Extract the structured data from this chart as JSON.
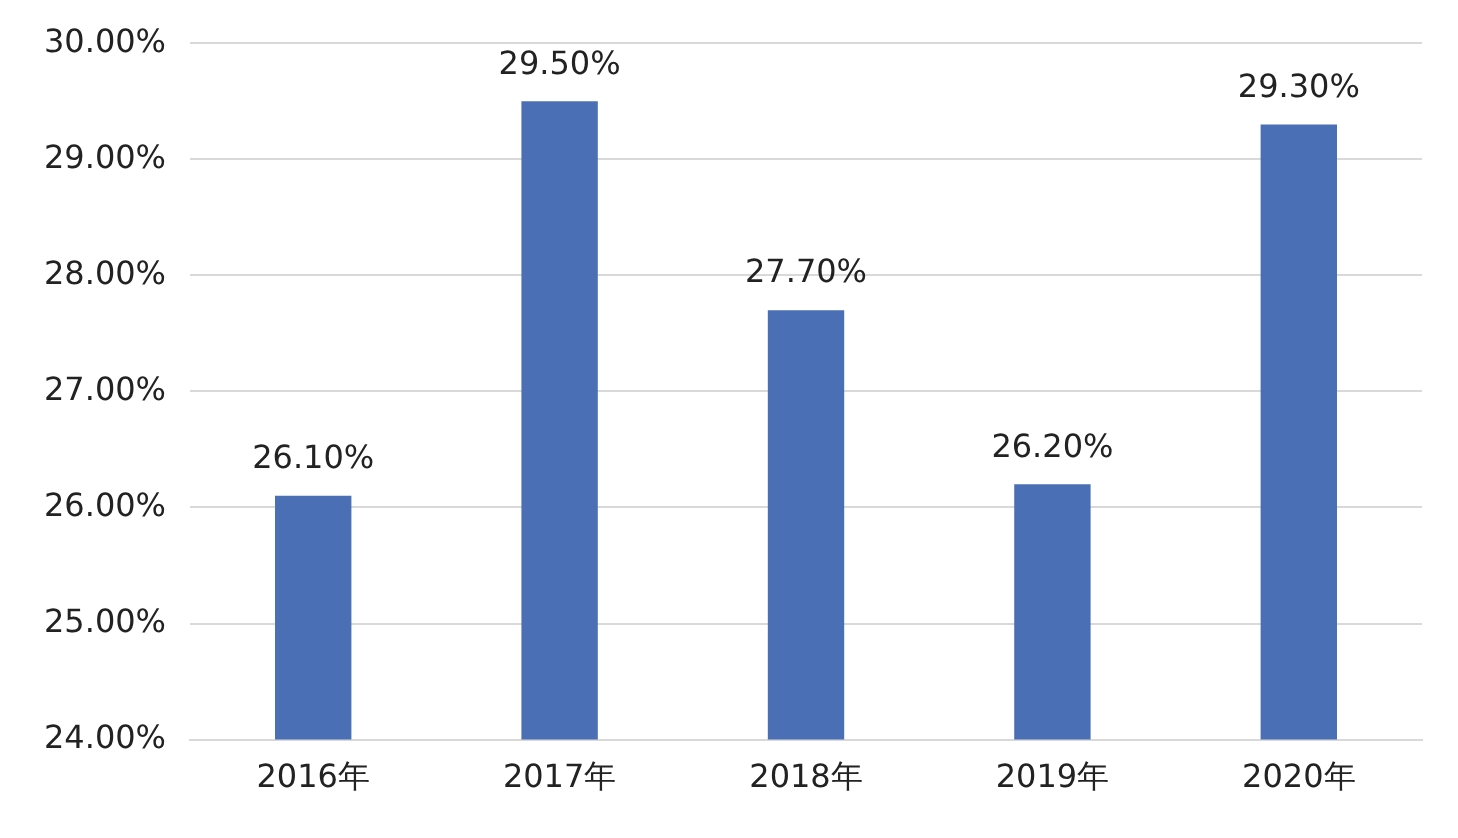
{
  "chart_data": {
    "type": "bar",
    "categories": [
      "2016年",
      "2017年",
      "2018年",
      "2019年",
      "2020年"
    ],
    "values": [
      26.1,
      29.5,
      27.7,
      26.2,
      29.3
    ],
    "value_labels": [
      "26.10%",
      "29.50%",
      "27.70%",
      "26.20%",
      "29.30%"
    ],
    "color": "#4a6fb5",
    "ylim": [
      24,
      30
    ],
    "yticks": [
      {
        "value": 24,
        "label": "24.00%"
      },
      {
        "value": 25,
        "label": "25.00%"
      },
      {
        "value": 26,
        "label": "26.00%"
      },
      {
        "value": 27,
        "label": "27.00%"
      },
      {
        "value": 28,
        "label": "28.00%"
      },
      {
        "value": 29,
        "label": "29.00%"
      },
      {
        "value": 30,
        "label": "30.00%"
      }
    ],
    "grid": "y",
    "legend": false
  }
}
